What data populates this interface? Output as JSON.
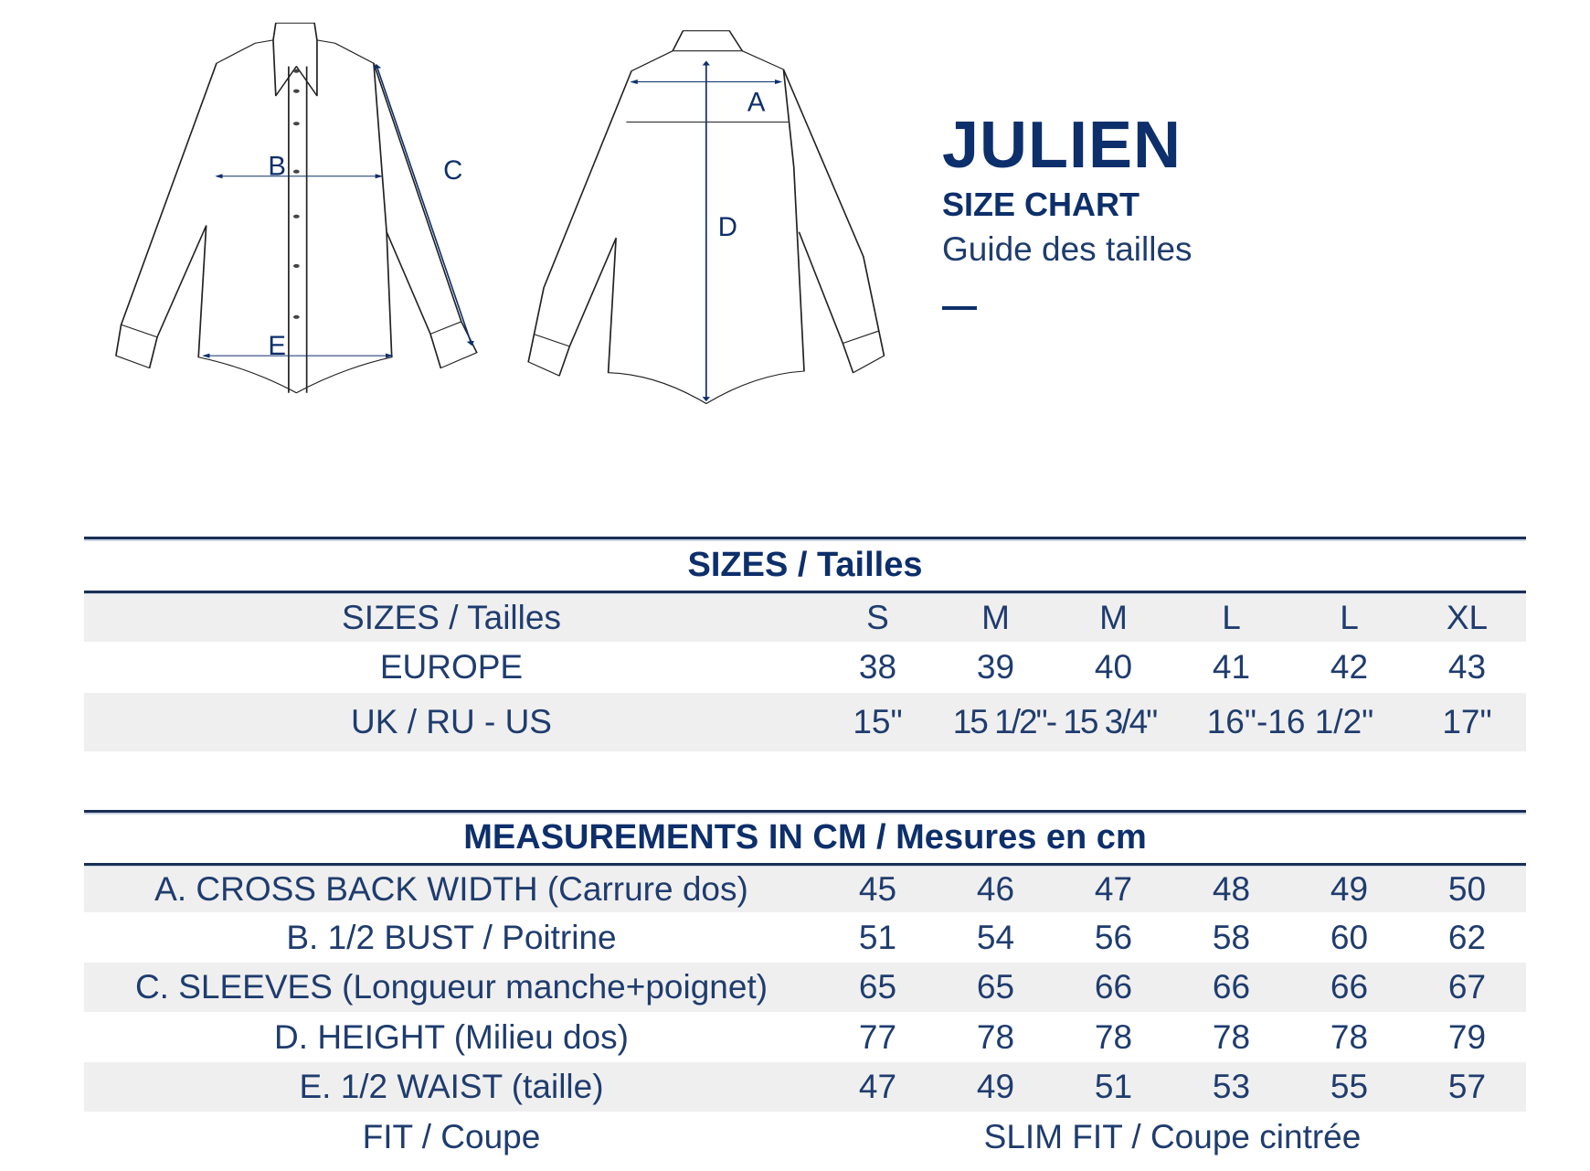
{
  "header": {
    "model_name": "JULIEN",
    "subtitle": "SIZE CHART",
    "subtitle_fr": "Guide des tailles"
  },
  "diagram_labels": {
    "a": "A",
    "b": "B",
    "c": "C",
    "d": "D",
    "e": "E"
  },
  "sizes_table": {
    "title": "SIZES / Tailles",
    "rows": [
      {
        "label": "SIZES / Tailles",
        "values": [
          "S",
          "M",
          "M",
          "L",
          "L",
          "XL"
        ]
      },
      {
        "label": "EUROPE",
        "values": [
          "38",
          "39",
          "40",
          "41",
          "42",
          "43"
        ]
      },
      {
        "label": "UK / RU - US",
        "values": [
          "15\"",
          "15 1/2\"- 15 3/4\"",
          "16\"-16 1/2\"",
          "17\""
        ]
      }
    ]
  },
  "measurements_table": {
    "title": "MEASUREMENTS IN CM / Mesures en cm",
    "rows": [
      {
        "label": "A. CROSS BACK WIDTH (Carrure dos)",
        "values": [
          "45",
          "46",
          "47",
          "48",
          "49",
          "50"
        ]
      },
      {
        "label": "B. 1/2 BUST / Poitrine",
        "values": [
          "51",
          "54",
          "56",
          "58",
          "60",
          "62"
        ]
      },
      {
        "label": "C. SLEEVES (Longueur manche+poignet)",
        "values": [
          "65",
          "65",
          "66",
          "66",
          "66",
          "67"
        ]
      },
      {
        "label": "D. HEIGHT (Milieu dos)",
        "values": [
          "77",
          "78",
          "78",
          "78",
          "78",
          "79"
        ]
      },
      {
        "label": "E. 1/2 WAIST (taille)",
        "values": [
          "47",
          "49",
          "51",
          "53",
          "55",
          "57"
        ]
      }
    ],
    "fit": {
      "label": "FIT / Coupe",
      "value": "SLIM FIT / Coupe cintrée"
    }
  },
  "colors": {
    "navy": "#0d2f6b",
    "text": "#1f3c6e",
    "row_shade": "#efefef"
  }
}
